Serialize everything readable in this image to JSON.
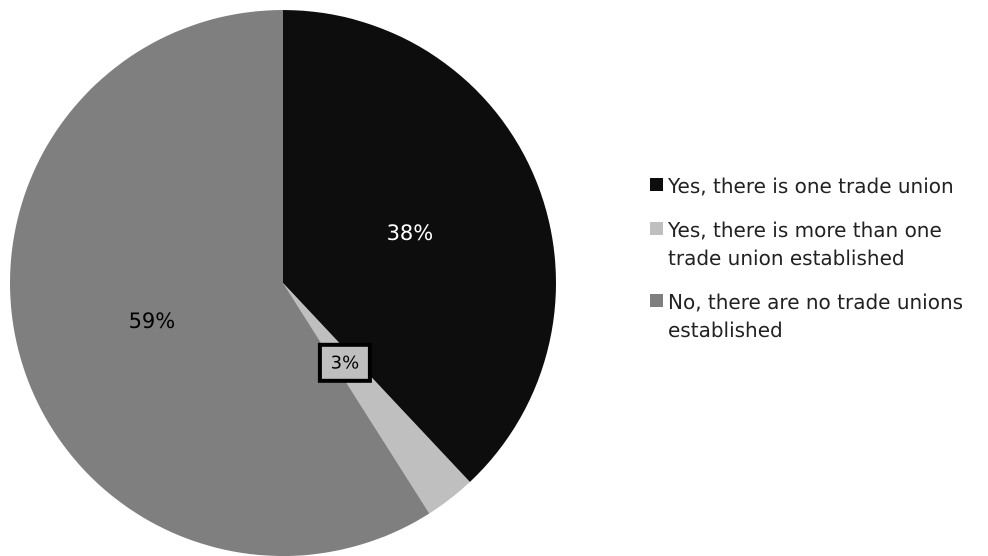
{
  "chart_data": {
    "type": "pie",
    "title": "",
    "slices": [
      {
        "label": "Yes, there is one trade union",
        "value": 38,
        "display": "38%",
        "color": "#0d0d0d",
        "label_color": "#ffffff"
      },
      {
        "label": "Yes, there is more than one trade union established",
        "value": 3,
        "display": "3%",
        "color": "#bfbfbf",
        "label_color": "#000000"
      },
      {
        "label": "No, there are no trade unions established",
        "value": 59,
        "display": "59%",
        "color": "#7f7f7f",
        "label_color": "#000000"
      }
    ],
    "start_angle_deg": 0,
    "direction": "clockwise",
    "legend_position": "right"
  }
}
